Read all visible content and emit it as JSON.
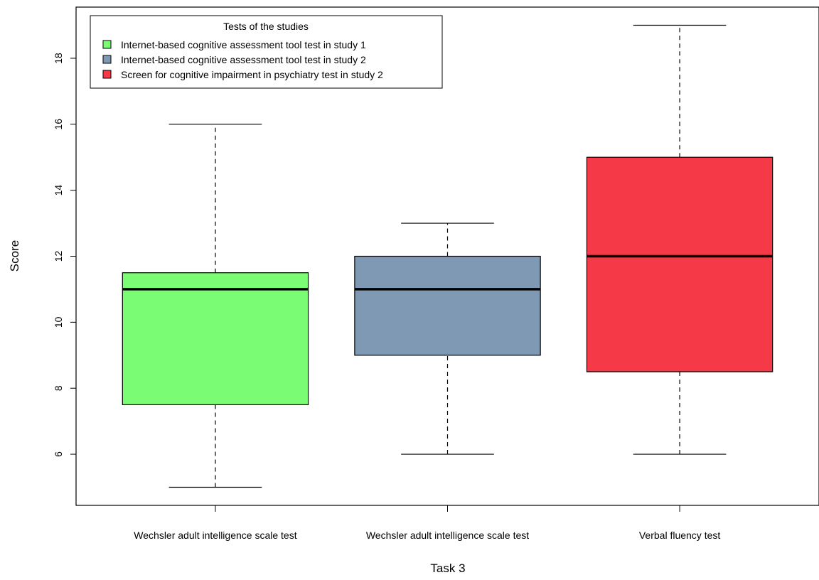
{
  "chart_data": {
    "type": "boxplot",
    "title": "",
    "xlabel": "Task 3",
    "ylabel": "Score",
    "ylim": [
      4.45,
      19.55
    ],
    "yticks": [
      6,
      8,
      10,
      12,
      14,
      16,
      18
    ],
    "grid": false,
    "legend": {
      "title": "Tests of the studies",
      "placement": "top-left",
      "entries": [
        "Internet-based cognitive assessment tool test in study 1",
        "Internet-based cognitive assessment tool test in study 2",
        "Screen for cognitive impairment in psychiatry test in study 2"
      ]
    },
    "categories": [
      "Wechsler adult intelligence scale test",
      "Wechsler adult intelligence scale test",
      "Verbal fluency test"
    ],
    "boxes": [
      {
        "min": 5,
        "q1": 7.5,
        "median": 11,
        "q3": 11.5,
        "max": 16,
        "color": "#7afc74"
      },
      {
        "min": 6,
        "q1": 9,
        "median": 11,
        "q3": 12,
        "max": 13,
        "color": "#7f98b4"
      },
      {
        "min": 6,
        "q1": 8.5,
        "median": 12,
        "q3": 15,
        "max": 19,
        "color": "#f63946"
      }
    ]
  }
}
